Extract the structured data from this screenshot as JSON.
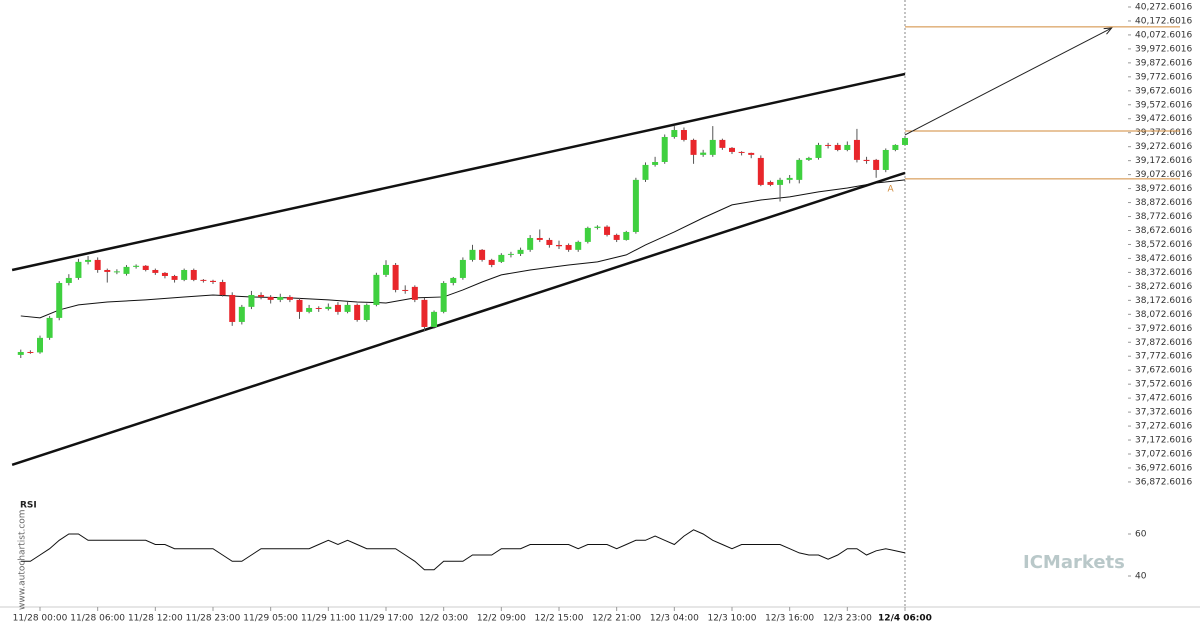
{
  "chart_data": {
    "type": "candlestick",
    "categories": [
      null,
      null,
      "11/28 00:00",
      null,
      null,
      null,
      null,
      null,
      "11/28 06:00",
      null,
      null,
      null,
      null,
      null,
      "11/28 12:00",
      null,
      null,
      null,
      null,
      null,
      "11/28 23:00",
      null,
      null,
      null,
      null,
      null,
      "11/29 05:00",
      null,
      null,
      null,
      null,
      null,
      "11/29 11:00",
      null,
      null,
      null,
      null,
      null,
      "11/29 17:00",
      null,
      null,
      null,
      null,
      null,
      "12/2 03:00",
      null,
      null,
      null,
      null,
      null,
      "12/2 09:00",
      null,
      null,
      null,
      null,
      null,
      "12/2 15:00",
      null,
      null,
      null,
      null,
      null,
      "12/2 21:00",
      null,
      null,
      null,
      null,
      null,
      "12/3 04:00",
      null,
      null,
      null,
      null,
      null,
      "12/3 10:00",
      null,
      null,
      null,
      null,
      null,
      "12/3 16:00",
      null,
      null,
      null,
      null,
      null,
      "12/3 23:00",
      null,
      null,
      null,
      null,
      null,
      "12/4 06:00"
    ],
    "open": [
      37782,
      37803,
      37800,
      37904,
      38047,
      38297,
      38333,
      38448,
      38462,
      38390,
      38376,
      38362,
      38412,
      38420,
      38390,
      38369,
      38347,
      38319,
      38390,
      38319,
      38312,
      38304,
      38211,
      38018,
      38126,
      38211,
      38197,
      38176,
      38197,
      38176,
      38090,
      38118,
      38111,
      38140,
      38090,
      38140,
      38032,
      38140,
      38355,
      38426,
      38247,
      38269,
      38176,
      37982,
      38090,
      38297,
      38333,
      38462,
      38534,
      38462,
      38448,
      38498,
      38505,
      38534,
      38619,
      38605,
      38569,
      38569,
      38534,
      38591,
      38691,
      38700,
      38641,
      38605,
      38662,
      39035,
      39142,
      39163,
      39342,
      39392,
      39321,
      39214,
      39214,
      39321,
      39264,
      39235,
      39228,
      39192,
      39020,
      38999,
      39035,
      39035,
      39178,
      39192,
      39285,
      39285,
      39249,
      39321,
      39178,
      39178,
      39106,
      39249,
      39285
    ],
    "high": [
      37820,
      37815,
      37920,
      38060,
      38310,
      38360,
      38470,
      38490,
      38480,
      38400,
      38395,
      38425,
      38430,
      38425,
      38400,
      38375,
      38355,
      38400,
      38400,
      38325,
      38320,
      38320,
      38230,
      38140,
      38240,
      38230,
      38210,
      38220,
      38210,
      38190,
      38140,
      38130,
      38150,
      38160,
      38160,
      38150,
      38150,
      38370,
      38460,
      38440,
      38280,
      38280,
      38190,
      38100,
      38310,
      38340,
      38480,
      38570,
      38540,
      38470,
      38510,
      38520,
      38550,
      38640,
      38680,
      38620,
      38600,
      38580,
      38600,
      38700,
      38710,
      38710,
      38650,
      38670,
      39050,
      39160,
      39200,
      39360,
      39420,
      39410,
      39330,
      39250,
      39420,
      39330,
      39270,
      39240,
      39230,
      39210,
      39030,
      39050,
      39070,
      39190,
      39200,
      39300,
      39300,
      39300,
      39310,
      39400,
      39200,
      39185,
      39260,
      39290,
      39350
    ],
    "low": [
      37760,
      37790,
      37790,
      37890,
      38030,
      38280,
      38320,
      38430,
      38370,
      38300,
      38360,
      38350,
      38400,
      38380,
      38355,
      38330,
      38300,
      38310,
      38310,
      38300,
      38290,
      38200,
      37990,
      38000,
      38110,
      38180,
      38150,
      38160,
      38160,
      38040,
      38080,
      38090,
      38100,
      38070,
      38080,
      38020,
      38020,
      38130,
      38340,
      38230,
      38220,
      38160,
      37950,
      37970,
      38080,
      38280,
      38320,
      38450,
      38450,
      38410,
      38440,
      38480,
      38490,
      38520,
      38590,
      38550,
      38540,
      38520,
      38520,
      38580,
      38680,
      38630,
      38590,
      38600,
      38650,
      39020,
      39130,
      39150,
      39330,
      39310,
      39150,
      39200,
      39200,
      39250,
      39220,
      39210,
      39190,
      38990,
      38990,
      38880,
      39010,
      39010,
      39170,
      39180,
      39260,
      39240,
      39240,
      39160,
      39150,
      39050,
      39090,
      39240,
      39280
    ],
    "close": [
      37803,
      37800,
      37904,
      38047,
      38297,
      38333,
      38448,
      38462,
      38390,
      38376,
      38380,
      38412,
      38420,
      38390,
      38369,
      38347,
      38319,
      38390,
      38319,
      38312,
      38304,
      38211,
      38018,
      38126,
      38211,
      38197,
      38176,
      38197,
      38176,
      38090,
      38118,
      38111,
      38126,
      38090,
      38140,
      38032,
      38140,
      38355,
      38426,
      38247,
      38240,
      38176,
      37982,
      38090,
      38297,
      38333,
      38462,
      38534,
      38462,
      38426,
      38498,
      38505,
      38534,
      38619,
      38605,
      38569,
      38560,
      38534,
      38591,
      38691,
      38700,
      38641,
      38605,
      38662,
      39035,
      39142,
      39163,
      39342,
      39392,
      39321,
      39214,
      39230,
      39321,
      39264,
      39235,
      39228,
      39214,
      38999,
      38999,
      39035,
      39049,
      39178,
      39192,
      39285,
      39280,
      39249,
      39285,
      39178,
      39170,
      39106,
      39249,
      39285,
      39335
    ],
    "up_color": "#3fd03f",
    "down_color": "#e8262b",
    "ylim": [
      36815,
      40322.6
    ],
    "yticks": [
      {
        "value": 40272.6016,
        "label": "40,272.6016"
      },
      {
        "value": 40172.6016,
        "label": "40,172.6016"
      },
      {
        "value": 40072.6016,
        "label": "40,072.6016"
      },
      {
        "value": 39972.6016,
        "label": "39,972.6016"
      },
      {
        "value": 39872.6016,
        "label": "39,872.6016"
      },
      {
        "value": 39772.6016,
        "label": "39,772.6016"
      },
      {
        "value": 39672.6016,
        "label": "39,672.6016"
      },
      {
        "value": 39572.6016,
        "label": "39,572.6016"
      },
      {
        "value": 39472.6016,
        "label": "39,472.6016"
      },
      {
        "value": 39372.6016,
        "label": "39,372.6016"
      },
      {
        "value": 39272.6016,
        "label": "39,272.6016"
      },
      {
        "value": 39172.6016,
        "label": "39,172.6016"
      },
      {
        "value": 39072.6016,
        "label": "39,072.6016"
      },
      {
        "value": 38972.6016,
        "label": "38,972.6016"
      },
      {
        "value": 38872.6016,
        "label": "38,872.6016"
      },
      {
        "value": 38772.6016,
        "label": "38,772.6016"
      },
      {
        "value": 38672.6016,
        "label": "38,672.6016"
      },
      {
        "value": 38572.6016,
        "label": "38,572.6016"
      },
      {
        "value": 38472.6016,
        "label": "38,472.6016"
      },
      {
        "value": 38372.6016,
        "label": "38,372.6016"
      },
      {
        "value": 38272.6016,
        "label": "38,272.6016"
      },
      {
        "value": 38172.6016,
        "label": "38,172.6016"
      },
      {
        "value": 38072.6016,
        "label": "38,072.6016"
      },
      {
        "value": 37972.6016,
        "label": "37,972.6016"
      },
      {
        "value": 37872.6016,
        "label": "37,872.6016"
      },
      {
        "value": 37772.6016,
        "label": "37,772.6016"
      },
      {
        "value": 37672.6016,
        "label": "37,672.6016"
      },
      {
        "value": 37572.6016,
        "label": "37,572.6016"
      },
      {
        "value": 37472.6016,
        "label": "37,472.6016"
      },
      {
        "value": 37372.6016,
        "label": "37,372.6016"
      },
      {
        "value": 37272.6016,
        "label": "37,272.6016"
      },
      {
        "value": 37172.6016,
        "label": "37,172.6016"
      },
      {
        "value": 37072.6016,
        "label": "37,072.6016"
      },
      {
        "value": 36972.6016,
        "label": "36,972.6016"
      },
      {
        "value": 36872.6016,
        "label": "36,872.6016"
      }
    ],
    "ma": {
      "x": [
        0,
        2,
        4,
        6,
        9,
        13,
        17,
        20,
        24,
        28,
        32,
        35,
        38,
        41,
        44,
        46,
        48,
        50,
        53,
        57,
        60,
        63,
        65,
        68,
        71,
        74,
        77,
        80,
        83,
        86,
        89,
        92
      ],
      "values": [
        38061,
        38047,
        38104,
        38140,
        38161,
        38176,
        38197,
        38211,
        38197,
        38190,
        38176,
        38161,
        38154,
        38190,
        38197,
        38247,
        38304,
        38355,
        38390,
        38426,
        38448,
        38498,
        38569,
        38662,
        38763,
        38856,
        38891,
        38913,
        38949,
        38977,
        39013,
        39035
      ],
      "color": "#111"
    },
    "trendlines": [
      {
        "x": [
          -0.9,
          92
        ],
        "values": [
          38390,
          39793
        ]
      },
      {
        "x": [
          -0.9,
          92
        ],
        "values": [
          36995,
          39085
        ]
      }
    ],
    "levels": [
      40130,
      39385,
      39042
    ],
    "level_color": "#d08a3a",
    "arrow": {
      "x": [
        92,
        113.5
      ],
      "values": [
        39357,
        40122
      ]
    },
    "annotation": {
      "text": "A",
      "x": 90.5,
      "value": 38970
    },
    "rsi": {
      "label": "RSI",
      "values": [
        47,
        47,
        50,
        53,
        57,
        60,
        60,
        57,
        57,
        57,
        57,
        57,
        57,
        57,
        55,
        55,
        53,
        53,
        53,
        53,
        53,
        50,
        47,
        47,
        50,
        53,
        53,
        53,
        53,
        53,
        53,
        55,
        57,
        55,
        57,
        55,
        53,
        53,
        53,
        53,
        50,
        47,
        43,
        43,
        47,
        47,
        47,
        50,
        50,
        50,
        53,
        53,
        53,
        55,
        55,
        55,
        55,
        55,
        53,
        55,
        55,
        55,
        53,
        55,
        57,
        57,
        59,
        57,
        55,
        59,
        62,
        60,
        57,
        55,
        53,
        55,
        55,
        55,
        55,
        55,
        53,
        51,
        50,
        50,
        48,
        50,
        53,
        53,
        50,
        52,
        53,
        52,
        51
      ],
      "ylim": [
        30,
        70
      ],
      "yticks": [
        60,
        40
      ]
    },
    "watermark": "www.autochartist.com",
    "logo": "ICMarkets"
  }
}
